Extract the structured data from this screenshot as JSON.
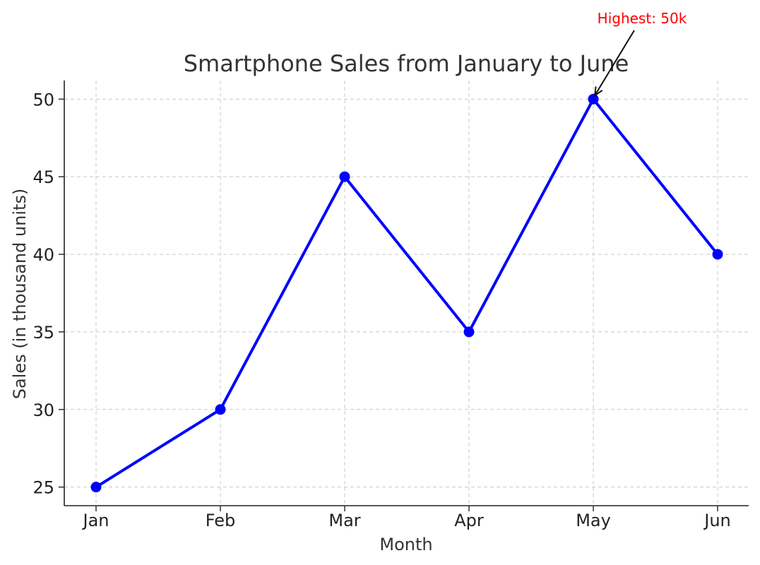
{
  "chart_data": {
    "type": "line",
    "title": "Smartphone Sales from January to June",
    "xlabel": "Month",
    "ylabel": "Sales (in thousand units)",
    "categories": [
      "Jan",
      "Feb",
      "Mar",
      "Apr",
      "May",
      "Jun"
    ],
    "series": [
      {
        "values": [
          25,
          30,
          45,
          35,
          50,
          40
        ],
        "color": "#0000ff",
        "marker": "circle"
      }
    ],
    "yticks": [
      "25",
      "30",
      "35",
      "40",
      "45",
      "50"
    ],
    "ylim": [
      23.8,
      51.2
    ],
    "grid": true,
    "annotations": [
      {
        "text": "Highest: 50k",
        "category": "May",
        "value": 50,
        "color": "#ff0000",
        "arrow": true
      }
    ]
  }
}
